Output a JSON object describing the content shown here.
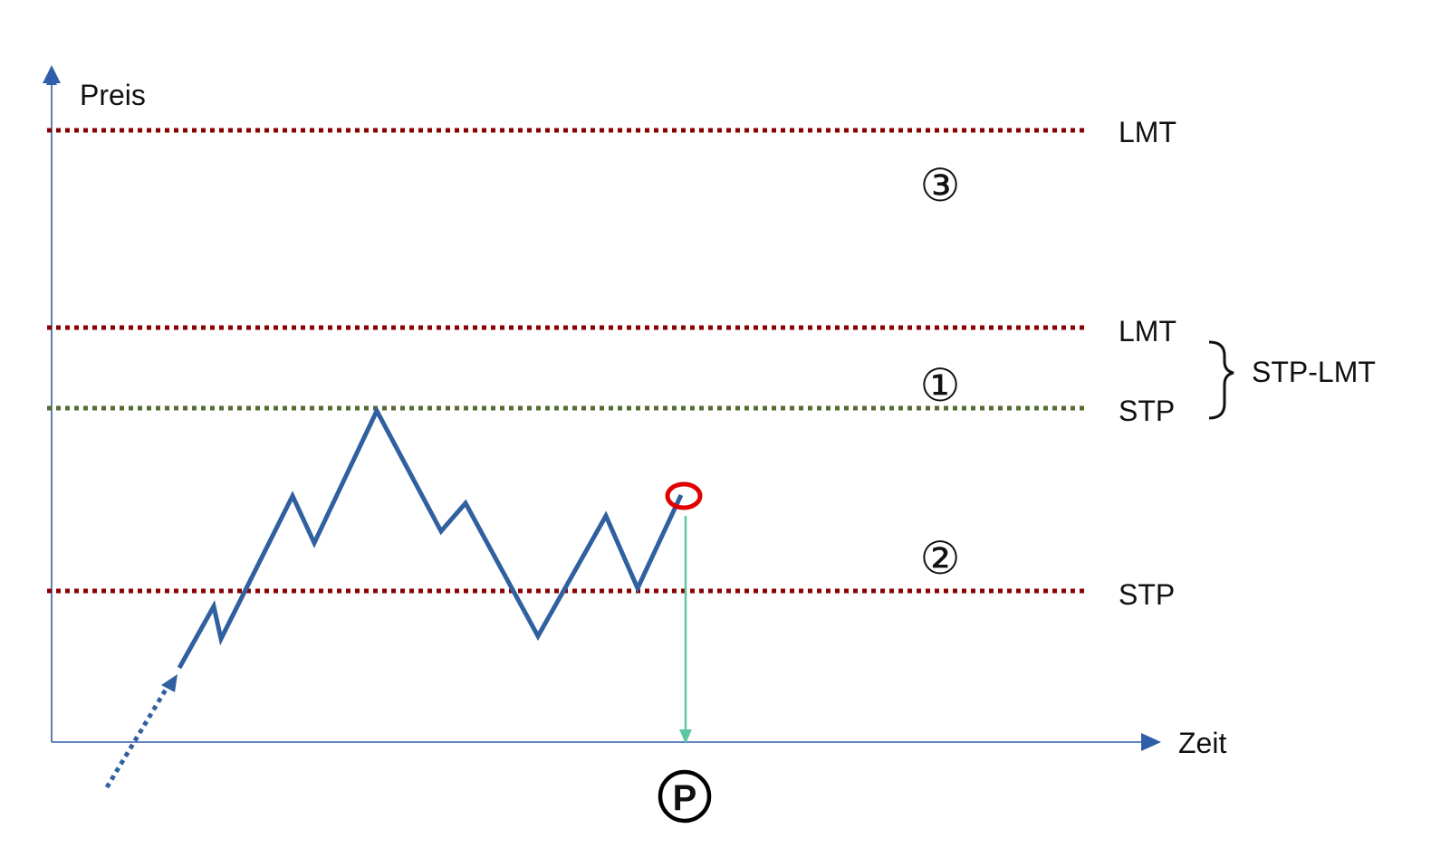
{
  "axes": {
    "y_label": "Preis",
    "x_label": "Zeit"
  },
  "levels": [
    {
      "id": "lmt-upper",
      "label": "LMT",
      "color": "#8b0000"
    },
    {
      "id": "lmt-mid",
      "label": "LMT",
      "color": "#8b0000"
    },
    {
      "id": "stp-mid",
      "label": "STP",
      "color": "#556b2f"
    },
    {
      "id": "stp-lower",
      "label": "STP",
      "color": "#8b0000"
    }
  ],
  "zones": {
    "one": "①",
    "two": "②",
    "three": "③"
  },
  "bracket_label": "STP-LMT",
  "marker_p": "Ⓟ",
  "colors": {
    "axis": "#2f5fa8",
    "price_line": "#30609f",
    "highlight_circle": "#e00000",
    "drop_arrow": "#5ec9a0"
  }
}
